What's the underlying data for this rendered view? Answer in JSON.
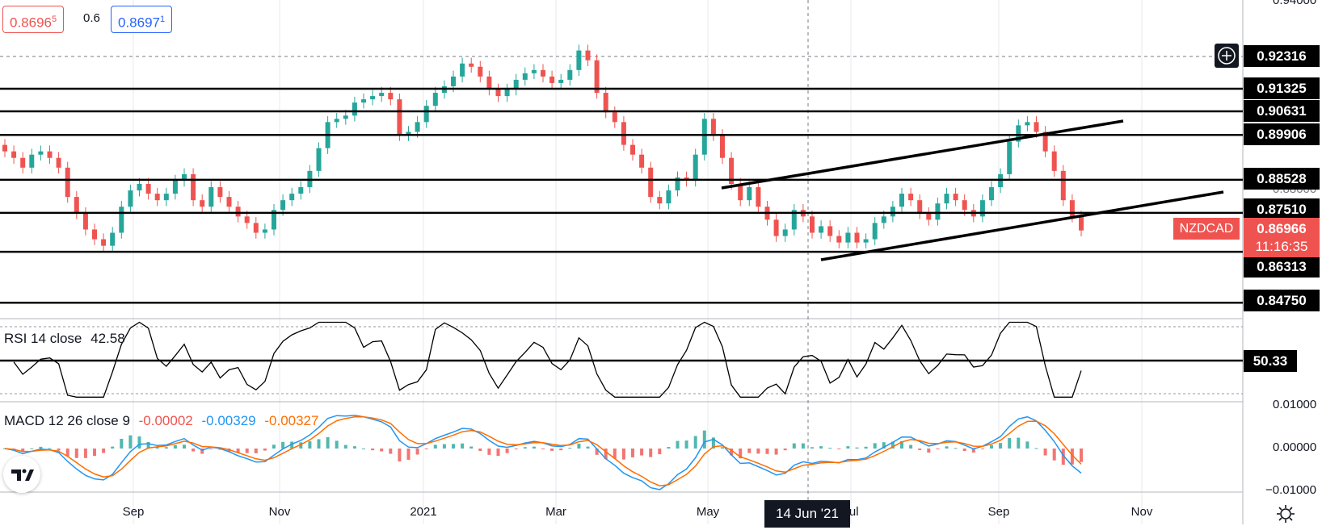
{
  "quotes": {
    "sell": "0.8696",
    "sell_sup": "5",
    "spread": "0.6",
    "buy": "0.8697",
    "buy_sup": "1"
  },
  "symbol": "NZDCAD",
  "last_price": "0.86966",
  "countdown": "11:16:35",
  "crosshair_price": "0.92316",
  "crosshair_date": "14 Jun '21",
  "level_tags": [
    "0.91325",
    "0.90631",
    "0.89906",
    "0.88528",
    "0.87510",
    "0.86313",
    "0.84750"
  ],
  "price_ticks": [
    "0.94000",
    "0.88000"
  ],
  "rsi": {
    "label": "RSI 14 close",
    "value": "42.58",
    "level_tag": "50.33"
  },
  "macd": {
    "label": "MACD 12 26 close 9",
    "v1": "-0.00002",
    "v2": "-0.00329",
    "v3": "-0.00327",
    "ticks": [
      "0.01000",
      "0.00000",
      "−0.01000"
    ]
  },
  "x_ticks": [
    "Sep",
    "Nov",
    "2021",
    "Mar",
    "May",
    "Jul",
    "Sep",
    "Nov"
  ],
  "colors": {
    "up": "#26a69a",
    "down": "#ef5350",
    "macd": "#2196f3",
    "signal": "#ff6d00",
    "rsi": "#000000",
    "tag": "#000000",
    "last": "#ef5350"
  },
  "chart_data": {
    "type": "candlestick",
    "symbol": "NZDCAD",
    "y_price_range": [
      0.84,
      0.94
    ],
    "horizontal_levels": [
      0.91325,
      0.90631,
      0.89906,
      0.88528,
      0.8751,
      0.86313,
      0.8475
    ],
    "close_series": [
      0.894,
      0.892,
      0.889,
      0.893,
      0.894,
      0.892,
      0.889,
      0.88,
      0.875,
      0.87,
      0.867,
      0.865,
      0.869,
      0.877,
      0.882,
      0.884,
      0.881,
      0.879,
      0.881,
      0.885,
      0.887,
      0.879,
      0.877,
      0.883,
      0.88,
      0.877,
      0.874,
      0.872,
      0.869,
      0.87,
      0.876,
      0.879,
      0.881,
      0.883,
      0.888,
      0.895,
      0.903,
      0.904,
      0.905,
      0.909,
      0.91,
      0.911,
      0.912,
      0.91,
      0.899,
      0.9,
      0.903,
      0.908,
      0.912,
      0.914,
      0.917,
      0.921,
      0.92,
      0.917,
      0.913,
      0.911,
      0.913,
      0.916,
      0.918,
      0.919,
      0.917,
      0.915,
      0.916,
      0.919,
      0.925,
      0.922,
      0.912,
      0.906,
      0.903,
      0.896,
      0.893,
      0.889,
      0.88,
      0.878,
      0.882,
      0.886,
      0.885,
      0.893,
      0.904,
      0.899,
      0.892,
      0.884,
      0.879,
      0.883,
      0.877,
      0.873,
      0.868,
      0.87,
      0.876,
      0.874,
      0.869,
      0.871,
      0.868,
      0.866,
      0.869,
      0.866,
      0.867,
      0.872,
      0.874,
      0.877,
      0.881,
      0.879,
      0.875,
      0.873,
      0.878,
      0.881,
      0.879,
      0.876,
      0.874,
      0.879,
      0.883,
      0.887,
      0.897,
      0.902,
      0.903,
      0.9,
      0.894,
      0.888,
      0.879,
      0.874,
      0.8697
    ],
    "rsi_level": 50.33,
    "rsi_last": 42.58,
    "macd_last": -0.00329,
    "signal_last": -0.00327,
    "histogram_last": -2e-05
  }
}
